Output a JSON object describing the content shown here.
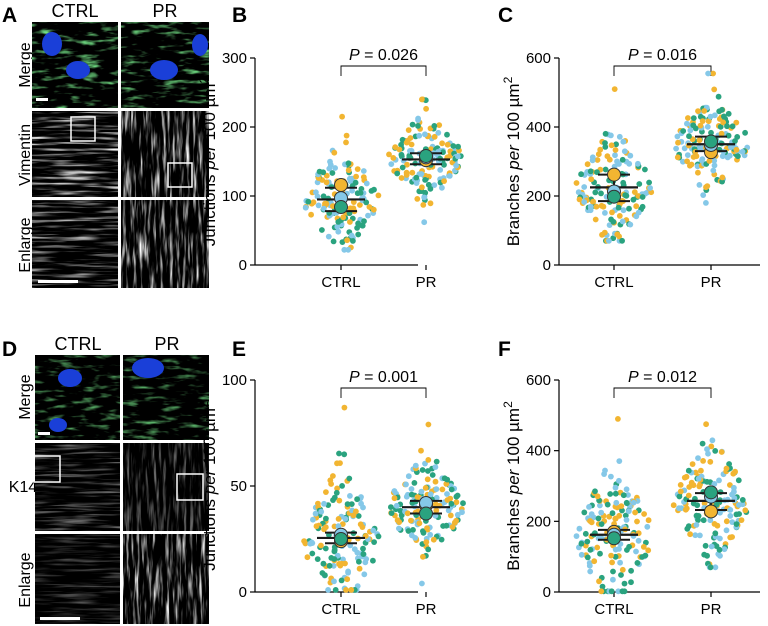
{
  "colors": {
    "dots": [
      "#f2b531",
      "#85c8e8",
      "#2aa37f"
    ],
    "means": [
      "#f2b531",
      "#85c8e8",
      "#2aa37f"
    ],
    "merge_green": "#2fc43a",
    "merge_blue": "#1a3fd8"
  },
  "image_panels": [
    {
      "letter": "A",
      "columns": [
        "CTRL",
        "PR"
      ],
      "rows": [
        "Merge",
        "Vimentin",
        "Enlarge"
      ]
    },
    {
      "letter": "D",
      "columns": [
        "CTRL",
        "PR"
      ],
      "rows": [
        "Merge",
        "K14",
        "Enlarge"
      ]
    }
  ],
  "chart_data": [
    {
      "letter": "B",
      "type": "scatter",
      "ylabel_pre": "Junctions",
      "ylabel_italic": "per",
      "ylabel_post": "100 µm",
      "ylabel_sup": "2",
      "categories": [
        "CTRL",
        "PR"
      ],
      "ylim": [
        0,
        300
      ],
      "yticks": [
        0,
        100,
        200,
        300
      ],
      "p_value": "P = 0.026",
      "dist": [
        [
          95,
          35,
          22,
          215
        ],
        [
          155,
          28,
          62,
          240
        ]
      ],
      "mean_line": [
        95,
        153
      ],
      "error": [
        [
          78,
          112
        ],
        [
          146,
          162
        ]
      ],
      "replicate_means": [
        [
          116,
          97,
          84
        ],
        [
          152,
          156,
          158
        ]
      ]
    },
    {
      "letter": "C",
      "type": "scatter",
      "ylabel_pre": "Branches",
      "ylabel_italic": "per",
      "ylabel_post": "100 µm",
      "ylabel_sup": "2",
      "categories": [
        "CTRL",
        "PR"
      ],
      "ylim": [
        0,
        600
      ],
      "yticks": [
        0,
        200,
        400,
        600
      ],
      "p_value": "P = 0.016",
      "dist": [
        [
          225,
          75,
          70,
          510
        ],
        [
          350,
          65,
          180,
          555
        ]
      ],
      "mean_line": [
        225,
        350
      ],
      "error": [
        [
          185,
          262
        ],
        [
          330,
          372
        ]
      ],
      "replicate_means": [
        [
          262,
          213,
          198
        ],
        [
          327,
          348,
          358
        ]
      ]
    },
    {
      "letter": "E",
      "type": "scatter",
      "ylabel_pre": "Junctions",
      "ylabel_italic": "per",
      "ylabel_post": "100 µm",
      "ylabel_sup": "2",
      "categories": [
        "CTRL",
        "PR"
      ],
      "ylim": [
        0,
        100
      ],
      "yticks": [
        0,
        50,
        100
      ],
      "p_value": "P = 0.001",
      "dist": [
        [
          25,
          15,
          1,
          87
        ],
        [
          40,
          11,
          4,
          79
        ]
      ],
      "mean_line": [
        25.5,
        40
      ],
      "error": [
        [
          23,
          28
        ],
        [
          37,
          43
        ]
      ],
      "replicate_means": [
        [
          24,
          27,
          25
        ],
        [
          41,
          42,
          37
        ]
      ]
    },
    {
      "letter": "F",
      "type": "scatter",
      "ylabel_pre": "Branches",
      "ylabel_italic": "per",
      "ylabel_post": "100 µm",
      "ylabel_sup": "2",
      "categories": [
        "CTRL",
        "PR"
      ],
      "ylim": [
        0,
        600
      ],
      "yticks": [
        0,
        200,
        400,
        600
      ],
      "p_value": "P = 0.012",
      "dist": [
        [
          160,
          90,
          2,
          490
        ],
        [
          258,
          80,
          70,
          475
        ]
      ],
      "mean_line": [
        162,
        258
      ],
      "error": [
        [
          148,
          176
        ],
        [
          232,
          280
        ]
      ],
      "replicate_means": [
        [
          170,
          162,
          152
        ],
        [
          228,
          270,
          282
        ]
      ]
    }
  ]
}
